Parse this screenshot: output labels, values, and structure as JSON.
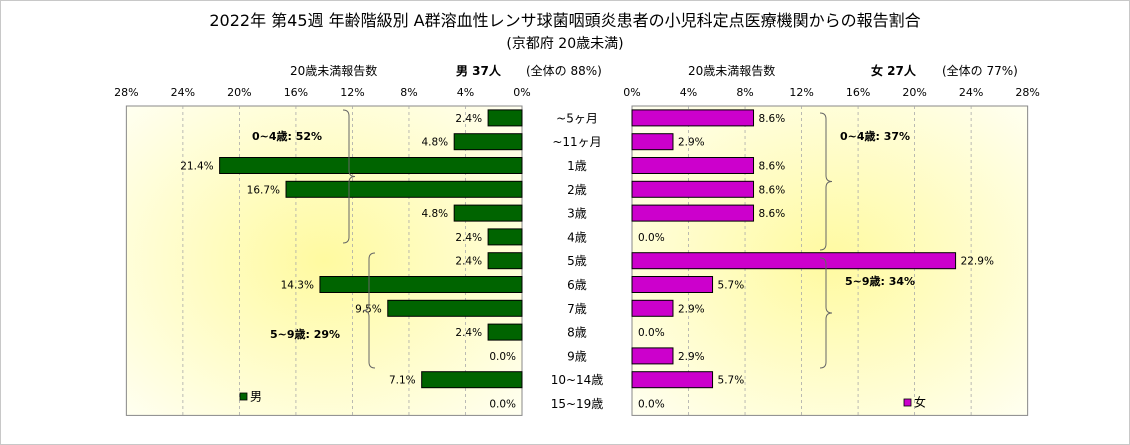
{
  "title": "2022年 第45週 年齢階級別 A群溶血性レンサ球菌咽頭炎患者の小児科定点医療機関からの報告割合",
  "subtitle": "(京都府 20歳未満)",
  "male_header": {
    "label": "20歳未満報告数",
    "count": "男 37人",
    "share": "(全体の 88%)"
  },
  "female_header": {
    "label": "20歳未満報告数",
    "count": "女 27人",
    "share": "(全体の 77%)"
  },
  "colors": {
    "male": "#006400",
    "female": "#cc00cc",
    "plot_bg_outer": "#fffff0",
    "plot_bg_inner": "#fffaa0"
  },
  "chart_data": [
    {
      "type": "bar",
      "orientation": "horizontal",
      "direction": "right-to-left",
      "series": [
        {
          "name": "男",
          "values": [
            2.4,
            4.8,
            21.4,
            16.7,
            4.8,
            2.4,
            2.4,
            14.3,
            9.5,
            2.4,
            0.0,
            7.1,
            0.0
          ]
        }
      ],
      "categories": [
        "~5ヶ月",
        "~11ヶ月",
        "1歳",
        "2歳",
        "3歳",
        "4歳",
        "5歳",
        "6歳",
        "7歳",
        "8歳",
        "9歳",
        "10~14歳",
        "15~19歳"
      ],
      "data_labels": [
        "2.4%",
        "4.8%",
        "21.4%",
        "16.7%",
        "4.8%",
        "2.4%",
        "2.4%",
        "14.3%",
        "9.5%",
        "2.4%",
        "0.0%",
        "7.1%",
        "0.0%"
      ],
      "xticks": [
        "28%",
        "24%",
        "20%",
        "16%",
        "12%",
        "8%",
        "4%",
        "0%"
      ],
      "xlim": [
        0,
        28
      ],
      "grid": true,
      "legend": "bottom-left",
      "annotations": [
        "0~4歳: 52%",
        "5~9歳: 29%"
      ]
    },
    {
      "type": "bar",
      "orientation": "horizontal",
      "direction": "left-to-right",
      "series": [
        {
          "name": "女",
          "values": [
            8.6,
            2.9,
            8.6,
            8.6,
            8.6,
            0.0,
            22.9,
            5.7,
            2.9,
            0.0,
            2.9,
            5.7,
            0.0
          ]
        }
      ],
      "categories": [
        "~5ヶ月",
        "~11ヶ月",
        "1歳",
        "2歳",
        "3歳",
        "4歳",
        "5歳",
        "6歳",
        "7歳",
        "8歳",
        "9歳",
        "10~14歳",
        "15~19歳"
      ],
      "data_labels": [
        "8.6%",
        "2.9%",
        "8.6%",
        "8.6%",
        "8.6%",
        "0.0%",
        "22.9%",
        "5.7%",
        "2.9%",
        "0.0%",
        "2.9%",
        "5.7%",
        "0.0%"
      ],
      "xticks": [
        "0%",
        "4%",
        "8%",
        "12%",
        "16%",
        "20%",
        "24%",
        "28%"
      ],
      "xlim": [
        0,
        28
      ],
      "grid": true,
      "legend": "bottom-right",
      "annotations": [
        "0~4歳: 37%",
        "5~9歳: 34%"
      ]
    }
  ]
}
